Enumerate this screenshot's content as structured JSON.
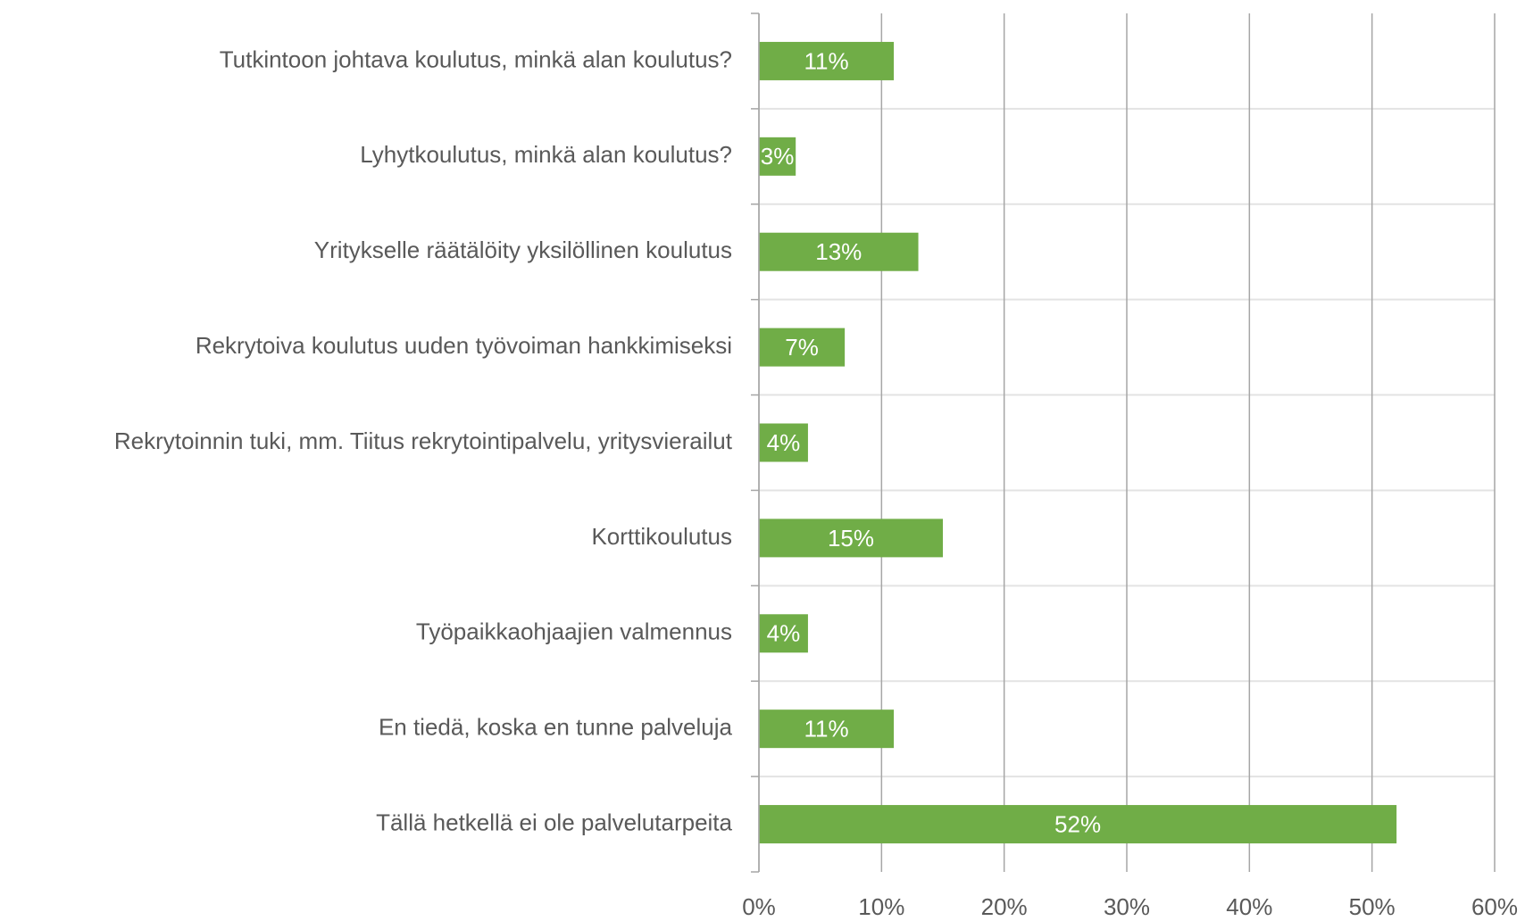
{
  "chart_data": {
    "type": "barh",
    "categories": [
      "Tutkintoon johtava koulutus, minkä alan koulutus?",
      "Lyhytkoulutus, minkä alan koulutus?",
      "Yritykselle räätälöity yksilöllinen koulutus",
      "Rekrytoiva koulutus uuden työvoiman hankkimiseksi",
      "Rekrytoinnin tuki, mm. Tiitus rekrytointipalvelu, yritysvierailut",
      "Korttikoulutus",
      "Työpaikkaohjaajien valmennus",
      "En tiedä, koska en tunne palveluja",
      "Tällä hetkellä ei ole palvelutarpeita"
    ],
    "values": [
      11,
      3,
      13,
      7,
      4,
      15,
      4,
      11,
      52
    ],
    "value_labels": [
      "11%",
      "3%",
      "13%",
      "7%",
      "4%",
      "15%",
      "4%",
      "11%",
      "52%"
    ],
    "color": "#70ad47",
    "xlim": [
      0,
      60
    ],
    "xticks": [
      {
        "value": 0,
        "label": "0%"
      },
      {
        "value": 10,
        "label": "10%"
      },
      {
        "value": 20,
        "label": "20%"
      },
      {
        "value": 30,
        "label": "30%"
      },
      {
        "value": 40,
        "label": "40%"
      },
      {
        "value": 50,
        "label": "50%"
      },
      {
        "value": 60,
        "label": "60%"
      }
    ],
    "grid": true
  }
}
